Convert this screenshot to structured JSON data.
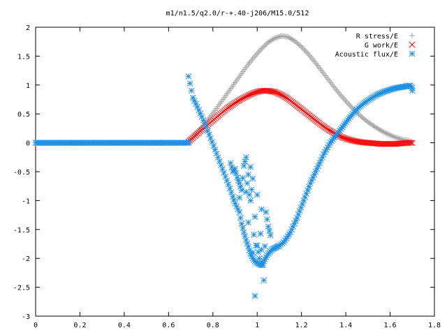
{
  "chart_data": {
    "type": "scatter",
    "title": "m1/n1.5/q2.0/r-+.40-j206/M15.0/512",
    "xlabel": "",
    "ylabel": "",
    "xlim": [
      0,
      1.8
    ],
    "ylim": [
      -3,
      2
    ],
    "x_ticks": [
      "0",
      "0.2",
      "0.4",
      "0.6",
      "0.8",
      "1",
      "1.2",
      "1.4",
      "1.6",
      "1.8"
    ],
    "y_ticks": [
      "2",
      "1.5",
      "1",
      "0.5",
      "0",
      "-0.5",
      "-1",
      "-1.5",
      "-2",
      "-2.5",
      "-3"
    ],
    "grid": false,
    "legend_position": "top-right",
    "series": [
      {
        "name": "R stress/E",
        "marker": "+",
        "color": "#a0a0a0",
        "x": [
          0.69,
          0.72,
          0.75,
          0.78,
          0.81,
          0.84,
          0.87,
          0.9,
          0.93,
          0.96,
          0.99,
          1.02,
          1.05,
          1.08,
          1.11,
          1.14,
          1.17,
          1.2,
          1.23,
          1.26,
          1.29,
          1.32,
          1.35,
          1.38,
          1.41,
          1.44,
          1.47,
          1.5,
          1.53,
          1.56,
          1.59,
          1.62,
          1.65,
          1.68,
          1.7
        ],
        "y": [
          0.02,
          0.14,
          0.27,
          0.41,
          0.56,
          0.72,
          0.88,
          1.04,
          1.2,
          1.36,
          1.5,
          1.63,
          1.74,
          1.81,
          1.85,
          1.83,
          1.76,
          1.66,
          1.54,
          1.4,
          1.25,
          1.1,
          0.95,
          0.81,
          0.68,
          0.56,
          0.45,
          0.36,
          0.28,
          0.21,
          0.15,
          0.1,
          0.06,
          0.04,
          0.02
        ]
      },
      {
        "name": "G work/E",
        "marker": "x",
        "color": "#ff0000",
        "x": [
          0.69,
          0.72,
          0.75,
          0.78,
          0.81,
          0.84,
          0.87,
          0.9,
          0.93,
          0.96,
          0.99,
          1.02,
          1.05,
          1.08,
          1.11,
          1.14,
          1.17,
          1.2,
          1.23,
          1.26,
          1.29,
          1.32,
          1.35,
          1.38,
          1.41,
          1.44,
          1.47,
          1.5,
          1.53,
          1.56,
          1.59,
          1.62,
          1.65,
          1.68,
          1.7
        ],
        "y": [
          0.02,
          0.12,
          0.22,
          0.32,
          0.42,
          0.52,
          0.61,
          0.69,
          0.76,
          0.82,
          0.87,
          0.9,
          0.9,
          0.88,
          0.83,
          0.76,
          0.67,
          0.58,
          0.49,
          0.4,
          0.31,
          0.23,
          0.16,
          0.1,
          0.06,
          0.03,
          0.01,
          0.0,
          -0.01,
          -0.02,
          -0.02,
          -0.02,
          -0.01,
          0.0,
          0.0
        ]
      },
      {
        "name": "Acoustic flux/E",
        "marker": "*",
        "color": "#1e90e6",
        "x": [
          0.0,
          0.05,
          0.1,
          0.15,
          0.2,
          0.25,
          0.3,
          0.35,
          0.4,
          0.45,
          0.5,
          0.55,
          0.6,
          0.65,
          0.69,
          0.69,
          0.71,
          0.73,
          0.75,
          0.77,
          0.79,
          0.81,
          0.83,
          0.85,
          0.87,
          0.89,
          0.9,
          0.92,
          0.93,
          0.94,
          0.95,
          0.96,
          0.97,
          0.98,
          0.99,
          1.0,
          1.01,
          1.02,
          1.03,
          1.04,
          1.05,
          1.06,
          1.07,
          1.08,
          1.09,
          1.1,
          1.12,
          1.15,
          1.18,
          1.21,
          1.24,
          1.27,
          1.3,
          1.33,
          1.36,
          1.39,
          1.42,
          1.45,
          1.48,
          1.51,
          1.54,
          1.57,
          1.6,
          1.63,
          1.66,
          1.69,
          1.7,
          0.88,
          0.89,
          0.9,
          0.91,
          0.92,
          0.93,
          0.94,
          0.95,
          0.95,
          0.96,
          0.96,
          0.97,
          0.97,
          0.98,
          0.98,
          0.99,
          0.99,
          1.0,
          1.0,
          1.01,
          1.02,
          1.02,
          1.03,
          1.04,
          1.05,
          1.06,
          0.92,
          1.7
        ],
        "y": [
          0.0,
          0.0,
          0.0,
          0.0,
          0.0,
          0.0,
          0.0,
          0.0,
          0.0,
          0.0,
          0.0,
          0.0,
          0.0,
          0.0,
          0.0,
          1.15,
          0.78,
          0.62,
          0.45,
          0.27,
          0.08,
          -0.12,
          -0.32,
          -0.52,
          -0.72,
          -0.93,
          -1.05,
          -1.2,
          -1.4,
          -1.55,
          -1.68,
          -1.8,
          -1.92,
          -2.0,
          -2.05,
          -2.08,
          -2.1,
          -2.12,
          -2.05,
          -1.98,
          -1.92,
          -1.88,
          -1.84,
          -1.82,
          -1.8,
          -1.78,
          -1.72,
          -1.55,
          -1.3,
          -1.0,
          -0.7,
          -0.45,
          -0.2,
          0.0,
          0.15,
          0.3,
          0.45,
          0.58,
          0.68,
          0.76,
          0.83,
          0.88,
          0.92,
          0.95,
          0.97,
          0.99,
          0.95,
          -0.35,
          -0.5,
          -0.45,
          -0.6,
          -0.7,
          -0.82,
          -0.4,
          -0.25,
          -0.85,
          -0.55,
          -1.38,
          -0.42,
          -1.0,
          -0.62,
          -1.9,
          -1.28,
          -2.65,
          -0.9,
          -1.78,
          -2.0,
          -1.15,
          -1.85,
          -2.38,
          -1.2,
          -1.45,
          -1.6,
          -0.95,
          0.9
        ]
      }
    ]
  }
}
